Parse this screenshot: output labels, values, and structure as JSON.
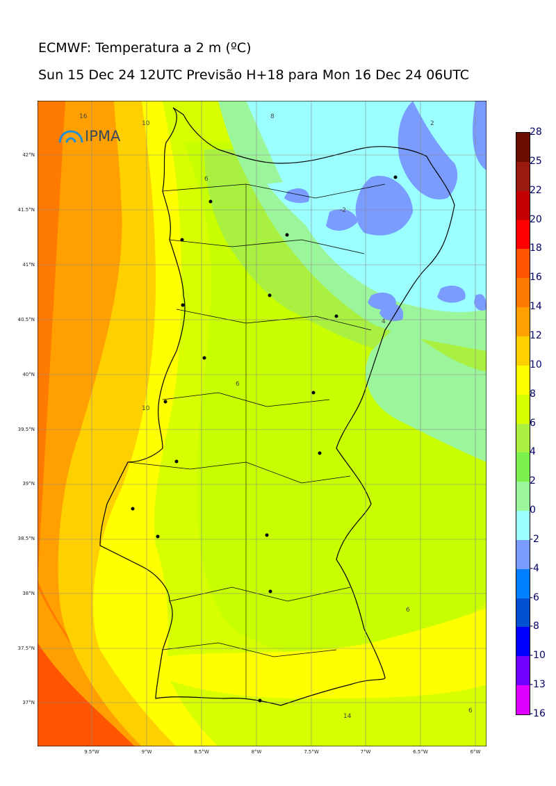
{
  "title": "ECMWF: Temperatura a 2 m (ºC)",
  "subtitle": "Sun 15 Dec 24 12UTC Previsão H+18 para Mon 16 Dec 24 06UTC",
  "logo_text": "IPMA",
  "lat_ticks": [
    "42°N",
    "41.5°N",
    "41°N",
    "40.5°N",
    "40°N",
    "39.5°N",
    "39°N",
    "38.5°N",
    "38°N",
    "37.5°N",
    "37°N"
  ],
  "lon_ticks": [
    "9.5°W",
    "9°W",
    "8.5°W",
    "8°W",
    "7.5°W",
    "7°W",
    "6.5°W",
    "6°W"
  ],
  "colorbar": {
    "labels": [
      "28",
      "25",
      "22",
      "20",
      "18",
      "16",
      "14",
      "12",
      "10",
      "8",
      "6",
      "4",
      "2",
      "0",
      "-2",
      "-4",
      "-6",
      "-8",
      "-10",
      "-13",
      "-16"
    ],
    "colors": [
      "#6b1000",
      "#9a1a10",
      "#c40000",
      "#ff0000",
      "#ff5500",
      "#ff7a00",
      "#ffa000",
      "#ffd000",
      "#ffff00",
      "#d7ff00",
      "#a9f040",
      "#7cf24c",
      "#9bf59b",
      "#9cffff",
      "#7a9cff",
      "#0080ff",
      "#0050d0",
      "#0000ff",
      "#7000ff",
      "#e000ff"
    ]
  },
  "contour_labels": [
    "16",
    "10",
    "8",
    "6",
    "2",
    "-2",
    "4",
    "10",
    "14",
    "6",
    "6",
    "6"
  ]
}
